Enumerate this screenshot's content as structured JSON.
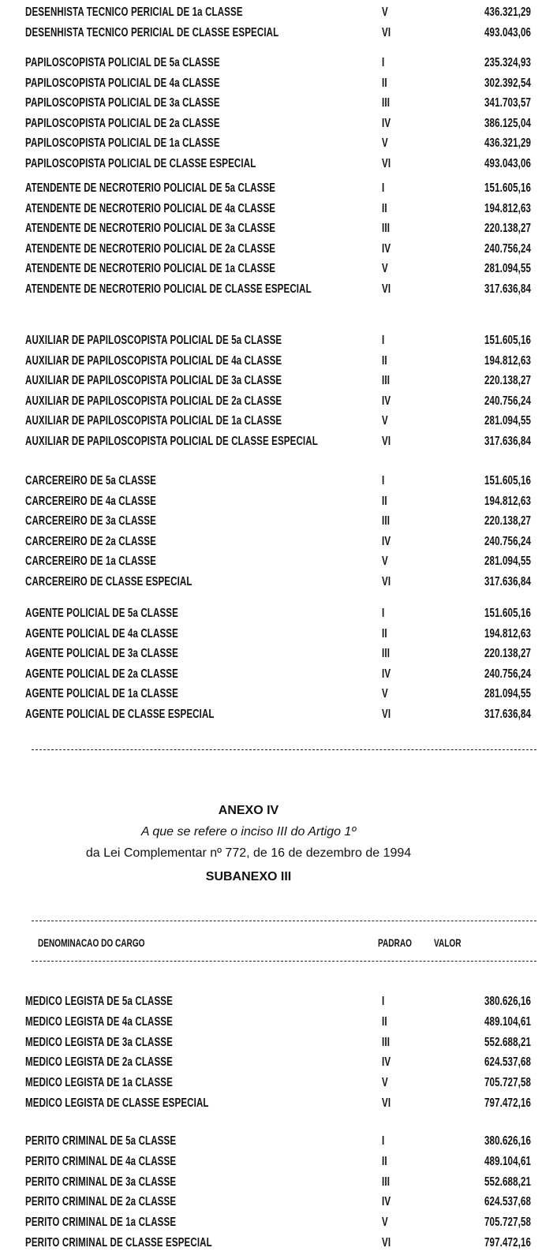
{
  "groups_part1": [
    {
      "rows": [
        {
          "cargo": "DESENHISTA TECNICO PERICIAL DE 1a CLASSE",
          "padrao": "V",
          "valor": "436.321,29"
        },
        {
          "cargo": "DESENHISTA TECNICO PERICIAL DE CLASSE ESPECIAL",
          "padrao": "VI",
          "valor": "493.043,06"
        }
      ]
    },
    {
      "rows": [
        {
          "cargo": "PAPILOSCOPISTA POLICIAL DE 5a CLASSE",
          "padrao": "I",
          "valor": "235.324,93"
        },
        {
          "cargo": "PAPILOSCOPISTA POLICIAL DE 4a CLASSE",
          "padrao": "II",
          "valor": "302.392,54"
        },
        {
          "cargo": "PAPILOSCOPISTA POLICIAL DE 3a CLASSE",
          "padrao": "III",
          "valor": "341.703,57"
        },
        {
          "cargo": "PAPILOSCOPISTA POLICIAL DE 2a CLASSE",
          "padrao": "IV",
          "valor": "386.125,04"
        },
        {
          "cargo": "PAPILOSCOPISTA POLICIAL DE 1a CLASSE",
          "padrao": "V",
          "valor": "436.321,29"
        },
        {
          "cargo": "PAPILOSCOPISTA POLICIAL DE CLASSE ESPECIAL",
          "padrao": "VI",
          "valor": "493.043,06"
        }
      ]
    },
    {
      "rows": [
        {
          "cargo": "ATENDENTE DE NECROTERIO POLICIAL DE 5a CLASSE",
          "padrao": "I",
          "valor": "151.605,16"
        },
        {
          "cargo": "ATENDENTE DE NECROTERIO POLICIAL DE 4a CLASSE",
          "padrao": "II",
          "valor": "194.812,63"
        },
        {
          "cargo": "ATENDENTE DE NECROTERIO POLICIAL DE 3a CLASSE",
          "padrao": "III",
          "valor": "220.138,27"
        },
        {
          "cargo": "ATENDENTE DE NECROTERIO POLICIAL DE 2a CLASSE",
          "padrao": "IV",
          "valor": "240.756,24"
        },
        {
          "cargo": "ATENDENTE DE NECROTERIO POLICIAL DE 1a CLASSE",
          "padrao": "V",
          "valor": "281.094,55"
        },
        {
          "cargo": "ATENDENTE DE NECROTERIO POLICIAL DE CLASSE ESPECIAL",
          "padrao": "VI",
          "valor": "317.636,84"
        }
      ]
    },
    {
      "rows": [
        {
          "cargo": "AUXILIAR DE PAPILOSCOPISTA POLICIAL DE 5a CLASSE",
          "padrao": "I",
          "valor": "151.605,16"
        },
        {
          "cargo": "AUXILIAR DE PAPILOSCOPISTA POLICIAL DE 4a CLASSE",
          "padrao": "II",
          "valor": "194.812,63"
        },
        {
          "cargo": "AUXILIAR DE PAPILOSCOPISTA POLICIAL DE 3a CLASSE",
          "padrao": "III",
          "valor": "220.138,27"
        },
        {
          "cargo": "AUXILIAR DE PAPILOSCOPISTA POLICIAL DE 2a CLASSE",
          "padrao": "IV",
          "valor": "240.756,24"
        },
        {
          "cargo": "AUXILIAR DE PAPILOSCOPISTA POLICIAL DE 1a CLASSE",
          "padrao": "V",
          "valor": "281.094,55"
        },
        {
          "cargo": "AUXILIAR DE PAPILOSCOPISTA POLICIAL DE CLASSE ESPECIAL",
          "padrao": "VI",
          "valor": "317.636,84"
        }
      ]
    },
    {
      "rows": [
        {
          "cargo": "CARCEREIRO DE 5a CLASSE",
          "padrao": "I",
          "valor": "151.605,16"
        },
        {
          "cargo": "CARCEREIRO DE 4a CLASSE",
          "padrao": "II",
          "valor": "194.812,63"
        },
        {
          "cargo": "CARCEREIRO DE 3a CLASSE",
          "padrao": "III",
          "valor": "220.138,27"
        },
        {
          "cargo": "CARCEREIRO DE 2a CLASSE",
          "padrao": "IV",
          "valor": "240.756,24"
        },
        {
          "cargo": "CARCEREIRO DE 1a CLASSE",
          "padrao": "V",
          "valor": "281.094,55"
        },
        {
          "cargo": "CARCEREIRO DE CLASSE ESPECIAL",
          "padrao": "VI",
          "valor": "317.636,84"
        }
      ]
    },
    {
      "rows": [
        {
          "cargo": "AGENTE POLICIAL DE 5a CLASSE",
          "padrao": "I",
          "valor": "151.605,16"
        },
        {
          "cargo": "AGENTE POLICIAL DE 4a CLASSE",
          "padrao": "II",
          "valor": "194.812,63"
        },
        {
          "cargo": "AGENTE POLICIAL DE 3a CLASSE",
          "padrao": "III",
          "valor": "220.138,27"
        },
        {
          "cargo": "AGENTE POLICIAL DE 2a CLASSE",
          "padrao": "IV",
          "valor": "240.756,24"
        },
        {
          "cargo": "AGENTE POLICIAL DE 1a CLASSE",
          "padrao": "V",
          "valor": "281.094,55"
        },
        {
          "cargo": "AGENTE POLICIAL DE CLASSE ESPECIAL",
          "padrao": "VI",
          "valor": "317.636,84"
        }
      ]
    }
  ],
  "annex": {
    "title": "ANEXO IV",
    "line1": "A que se refere o inciso III do Artigo 1º",
    "line2": "da Lei Complementar nº 772, de 16 de dezembro de 1994",
    "subtitle": "SUBANEXO III"
  },
  "table_header": {
    "cargo": "DENOMINACAO DO CARGO",
    "padrao": "PADRAO",
    "valor": "VALOR"
  },
  "groups_part2": [
    {
      "rows": [
        {
          "cargo": "MEDICO LEGISTA DE 5a CLASSE",
          "padrao": "I",
          "valor": "380.626,16"
        },
        {
          "cargo": "MEDICO LEGISTA DE 4a CLASSE",
          "padrao": "II",
          "valor": "489.104,61"
        },
        {
          "cargo": "MEDICO LEGISTA DE 3a CLASSE",
          "padrao": "III",
          "valor": "552.688,21"
        },
        {
          "cargo": "MEDICO LEGISTA DE 2a CLASSE",
          "padrao": "IV",
          "valor": "624.537,68"
        },
        {
          "cargo": "MEDICO LEGISTA DE 1a CLASSE",
          "padrao": "V",
          "valor": "705.727,58"
        },
        {
          "cargo": "MEDICO LEGISTA DE CLASSE ESPECIAL",
          "padrao": "VI",
          "valor": "797.472,16"
        }
      ]
    },
    {
      "rows": [
        {
          "cargo": "PERITO CRIMINAL DE 5a CLASSE",
          "padrao": "I",
          "valor": "380.626,16"
        },
        {
          "cargo": "PERITO CRIMINAL DE 4a CLASSE",
          "padrao": "II",
          "valor": "489.104,61"
        },
        {
          "cargo": "PERITO CRIMINAL DE 3a CLASSE",
          "padrao": "III",
          "valor": "552.688,21"
        },
        {
          "cargo": "PERITO CRIMINAL DE 2a CLASSE",
          "padrao": "IV",
          "valor": "624.537,68"
        },
        {
          "cargo": "PERITO CRIMINAL DE 1a CLASSE",
          "padrao": "V",
          "valor": "705.727,58"
        },
        {
          "cargo": "PERITO CRIMINAL DE CLASSE ESPECIAL",
          "padrao": "VI",
          "valor": "797.472,16"
        }
      ]
    }
  ]
}
